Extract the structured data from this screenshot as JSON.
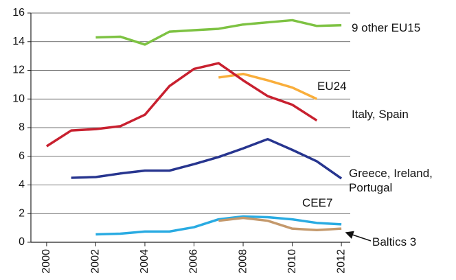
{
  "chart_data": {
    "type": "line",
    "x": [
      2000,
      2001,
      2002,
      2003,
      2004,
      2005,
      2006,
      2007,
      2008,
      2009,
      2010,
      2011,
      2012
    ],
    "series": [
      {
        "name": "9 other EU15",
        "color": "#7dc242",
        "values": [
          null,
          null,
          14.3,
          14.35,
          13.8,
          14.7,
          14.8,
          14.9,
          15.2,
          15.35,
          15.5,
          15.1,
          15.15
        ]
      },
      {
        "name": "EU24",
        "color": "#f9ae3b",
        "values": [
          null,
          null,
          null,
          null,
          null,
          null,
          null,
          11.5,
          11.75,
          11.3,
          10.8,
          10.0,
          null
        ]
      },
      {
        "name": "Italy, Spain",
        "color": "#c8202f",
        "values": [
          6.7,
          7.8,
          7.9,
          8.1,
          8.9,
          10.9,
          12.1,
          12.5,
          11.3,
          10.2,
          9.6,
          8.5,
          null
        ]
      },
      {
        "name": "Greece, Ireland, Portugal",
        "color": "#27358f",
        "values": [
          null,
          4.5,
          4.55,
          4.8,
          5.0,
          5.0,
          5.45,
          5.95,
          6.55,
          7.2,
          6.45,
          5.65,
          4.45
        ]
      },
      {
        "name": "CEE7",
        "color": "#29abe2",
        "values": [
          null,
          null,
          0.55,
          0.6,
          0.75,
          0.75,
          1.05,
          1.6,
          1.8,
          1.75,
          1.6,
          1.35,
          1.25
        ]
      },
      {
        "name": "Baltics 3",
        "color": "#c4996c",
        "values": [
          null,
          null,
          null,
          null,
          null,
          null,
          null,
          1.5,
          1.7,
          1.5,
          0.95,
          0.85,
          0.95
        ]
      }
    ],
    "xlim": [
      1999.36,
      2012.36
    ],
    "xticks": [
      2000,
      2002,
      2004,
      2006,
      2008,
      2010,
      2012
    ],
    "ylim": [
      0,
      16
    ],
    "yticks": [
      0,
      2,
      4,
      6,
      8,
      10,
      12,
      14,
      16
    ],
    "grid": true
  }
}
